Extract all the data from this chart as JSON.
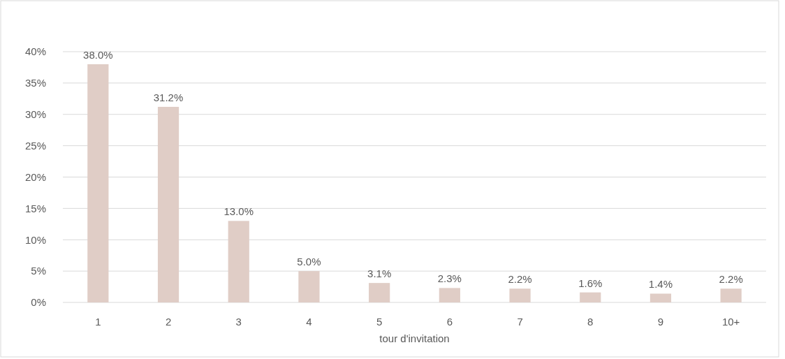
{
  "chart_data": {
    "type": "bar",
    "xlabel": "tour d'invitation",
    "categories": [
      "1",
      "2",
      "3",
      "4",
      "5",
      "6",
      "7",
      "8",
      "9",
      "10+"
    ],
    "values": [
      38.0,
      31.2,
      13.0,
      5.0,
      3.1,
      2.3,
      2.2,
      1.6,
      1.4,
      2.2
    ],
    "value_labels": [
      "38.0%",
      "31.2%",
      "13.0%",
      "5.0%",
      "3.1%",
      "2.3%",
      "2.2%",
      "1.6%",
      "1.4%",
      "2.2%"
    ],
    "color": "#e0cdc6",
    "ylim": [
      0,
      40
    ],
    "yticks": [
      {
        "value": 0,
        "label": "0%"
      },
      {
        "value": 5,
        "label": "5%"
      },
      {
        "value": 10,
        "label": "10%"
      },
      {
        "value": 15,
        "label": "15%"
      },
      {
        "value": 20,
        "label": "20%"
      },
      {
        "value": 25,
        "label": "25%"
      },
      {
        "value": 30,
        "label": "30%"
      },
      {
        "value": 35,
        "label": "35%"
      },
      {
        "value": 40,
        "label": "40%"
      }
    ],
    "grid": "y"
  }
}
